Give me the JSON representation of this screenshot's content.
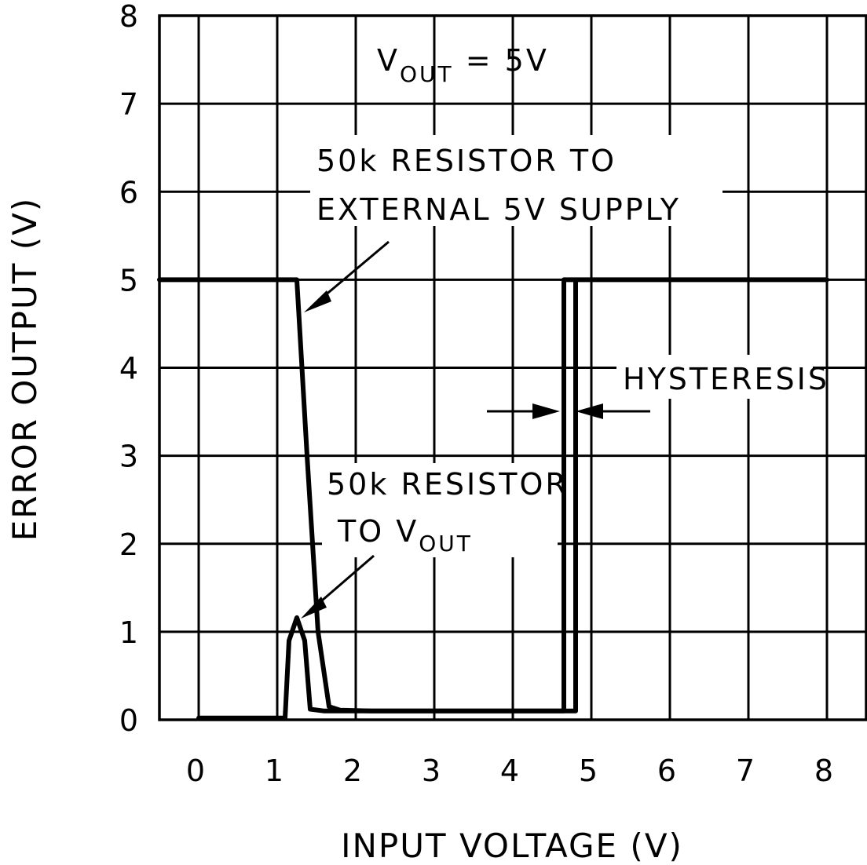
{
  "chart_data": {
    "type": "line",
    "xlabel": "INPUT VOLTAGE (V)",
    "ylabel": "ERROR OUTPUT (V)",
    "xlim": [
      -0.5,
      8.5
    ],
    "ylim": [
      0,
      8
    ],
    "x_ticks": [
      0,
      1,
      2,
      3,
      4,
      5,
      6,
      7,
      8
    ],
    "y_ticks": [
      0,
      1,
      2,
      3,
      4,
      5,
      6,
      7,
      8
    ],
    "grid": true,
    "series": [
      {
        "points": [
          [
            -0.5,
            5
          ],
          [
            1.25,
            5
          ],
          [
            1.38,
            3
          ],
          [
            1.52,
            1
          ],
          [
            1.66,
            0.15
          ],
          [
            1.8,
            0.11
          ],
          [
            2.2,
            0.1
          ],
          [
            4.8,
            0.1
          ],
          [
            4.8,
            5
          ],
          [
            8,
            5
          ]
        ]
      },
      {
        "points": [
          [
            0,
            0.02
          ],
          [
            1.1,
            0.02
          ],
          [
            1.15,
            0.9
          ],
          [
            1.25,
            1.16
          ],
          [
            1.35,
            0.9
          ],
          [
            1.42,
            0.12
          ],
          [
            1.6,
            0.1
          ],
          [
            4.65,
            0.1
          ],
          [
            4.65,
            5
          ],
          [
            4.8,
            5
          ]
        ]
      }
    ],
    "annotations": {
      "condition": {
        "main": "V",
        "sub": "OUT",
        "rest": " = 5V"
      },
      "external_line1": "50k RESISTOR TO",
      "external_line2": "EXTERNAL 5V SUPPLY",
      "vout_line1": "50k RESISTOR",
      "vout_line2_main": "TO V",
      "vout_line2_sub": "OUT",
      "hysteresis": "HYSTERESIS"
    }
  }
}
